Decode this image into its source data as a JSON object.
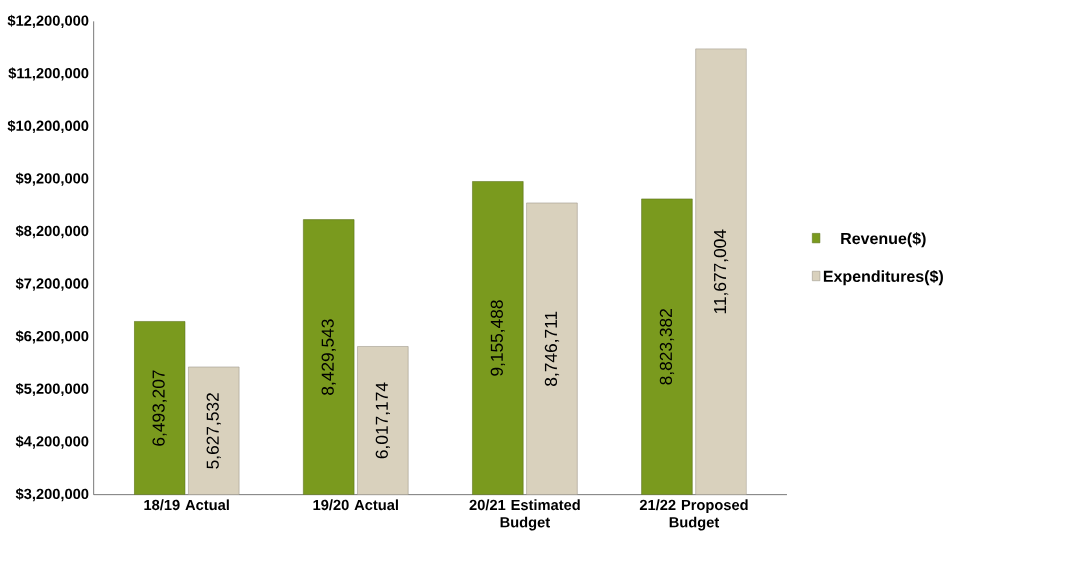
{
  "chart_data": {
    "type": "bar",
    "categories": [
      "18/19 Actual",
      "19/20 Actual",
      "20/21 Estimated Budget",
      "21/22 Proposed Budget"
    ],
    "series": [
      {
        "name": "Revenue($)",
        "color": "#7a9a1e",
        "values": [
          6493207,
          8429543,
          9155488,
          8823382
        ],
        "value_labels": [
          "6,493,207",
          "8,429,543",
          "9,155,488",
          "8,823,382"
        ]
      },
      {
        "name": "Expenditures($)",
        "color": "#d9d1bd",
        "values": [
          5627532,
          6017174,
          8746711,
          11677004
        ],
        "value_labels": [
          "5,627,532",
          "6,017,174",
          "8,746,711",
          "11,677,004"
        ]
      }
    ],
    "ylim": [
      3200000,
      12200000
    ],
    "yticks": [
      {
        "value": 3200000,
        "label": "$3,200,000"
      },
      {
        "value": 4200000,
        "label": "$4,200,000"
      },
      {
        "value": 5200000,
        "label": "$5,200,000"
      },
      {
        "value": 6200000,
        "label": "$6,200,000"
      },
      {
        "value": 7200000,
        "label": "$7,200,000"
      },
      {
        "value": 8200000,
        "label": "$8,200,000"
      },
      {
        "value": 9200000,
        "label": "$9,200,000"
      },
      {
        "value": 10200000,
        "label": "$10,200,000"
      },
      {
        "value": 11200000,
        "label": "$11,200,000"
      },
      {
        "value": 12200000,
        "label": "$12,200,000"
      }
    ],
    "grid": false,
    "legend": "right"
  }
}
